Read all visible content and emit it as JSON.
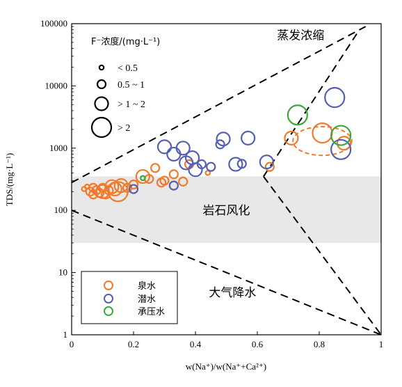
{
  "chart_data": {
    "type": "scatter",
    "title": "",
    "xlabel": "w(Na⁺)/w(Na⁺+Ca²⁺)",
    "ylabel": "TDS/(mg·L⁻¹)",
    "xlim": [
      0,
      1
    ],
    "ylim": [
      1,
      100000
    ],
    "yscale": "log",
    "x_ticks": [
      "0",
      "0.2",
      "0.4",
      "0.6",
      "0.8",
      "1"
    ],
    "y_ticks": [
      "1",
      "10",
      "100",
      "1000",
      "10000",
      "100000"
    ],
    "x_tick_values": [
      0,
      0.2,
      0.4,
      0.6,
      0.8,
      1
    ],
    "y_tick_values": [
      1,
      10,
      100,
      1000,
      10000,
      100000
    ],
    "grid": false,
    "colors": {
      "spring": "#f07a2a",
      "phreatic": "#5560b0",
      "confined": "#3aa83a",
      "band": "#e8e8e8",
      "ellipse": "#f07a2a"
    },
    "regions": [
      {
        "label": "蒸发浓缩",
        "x": 0.74,
        "y": 65000
      },
      {
        "label": "岩石风化",
        "x": 0.5,
        "y": 100
      },
      {
        "label": "大气降水",
        "x": 0.52,
        "y": 4.8
      }
    ],
    "rock_band": {
      "y_range": [
        30,
        350
      ]
    },
    "boundary_lines": [
      {
        "name": "upper-left",
        "points": [
          [
            0,
            280
          ],
          [
            0.95,
            90000
          ]
        ]
      },
      {
        "name": "lower-left",
        "points": [
          [
            0,
            100
          ],
          [
            1,
            1
          ]
        ]
      },
      {
        "name": "right-upper",
        "points": [
          [
            0.62,
            350
          ],
          [
            0.93,
            80000
          ]
        ]
      },
      {
        "name": "right-lower",
        "points": [
          [
            0.62,
            350
          ],
          [
            1,
            1
          ]
        ]
      }
    ],
    "highlight_ellipse": {
      "cx": 0.81,
      "cy": 1300,
      "x_radius": 0.095,
      "y_factor": 1.7
    },
    "size_legend": {
      "title": "F⁻浓度/(mg·L⁻¹)",
      "items": [
        {
          "label": "< 0.5",
          "size": 1
        },
        {
          "label": "0.5 ~ 1",
          "size": 2
        },
        {
          "label": "> 1 ~ 2",
          "size": 3
        },
        {
          "label": "> 2",
          "size": 4
        }
      ]
    },
    "series": [
      {
        "name": "泉水",
        "color": "#f07a2a",
        "points": [
          {
            "x": 0.04,
            "y": 220,
            "s": 1
          },
          {
            "x": 0.05,
            "y": 240,
            "s": 1
          },
          {
            "x": 0.06,
            "y": 200,
            "s": 2
          },
          {
            "x": 0.07,
            "y": 230,
            "s": 2
          },
          {
            "x": 0.07,
            "y": 180,
            "s": 2
          },
          {
            "x": 0.08,
            "y": 210,
            "s": 2
          },
          {
            "x": 0.09,
            "y": 190,
            "s": 2
          },
          {
            "x": 0.1,
            "y": 230,
            "s": 2
          },
          {
            "x": 0.1,
            "y": 200,
            "s": 3
          },
          {
            "x": 0.11,
            "y": 180,
            "s": 2
          },
          {
            "x": 0.12,
            "y": 210,
            "s": 2
          },
          {
            "x": 0.13,
            "y": 240,
            "s": 3
          },
          {
            "x": 0.14,
            "y": 220,
            "s": 3
          },
          {
            "x": 0.15,
            "y": 200,
            "s": 4
          },
          {
            "x": 0.16,
            "y": 250,
            "s": 3
          },
          {
            "x": 0.18,
            "y": 230,
            "s": 2
          },
          {
            "x": 0.2,
            "y": 260,
            "s": 2
          },
          {
            "x": 0.23,
            "y": 350,
            "s": 3
          },
          {
            "x": 0.25,
            "y": 320,
            "s": 2
          },
          {
            "x": 0.27,
            "y": 480,
            "s": 2
          },
          {
            "x": 0.29,
            "y": 280,
            "s": 2
          },
          {
            "x": 0.3,
            "y": 300,
            "s": 2
          },
          {
            "x": 0.33,
            "y": 380,
            "s": 2
          },
          {
            "x": 0.36,
            "y": 290,
            "s": 2
          },
          {
            "x": 0.38,
            "y": 550,
            "s": 2
          },
          {
            "x": 0.44,
            "y": 400,
            "s": 1
          },
          {
            "x": 0.64,
            "y": 500,
            "s": 2
          },
          {
            "x": 0.71,
            "y": 1450,
            "s": 3
          },
          {
            "x": 0.81,
            "y": 1750,
            "s": 4
          },
          {
            "x": 0.88,
            "y": 1200,
            "s": 3
          }
        ]
      },
      {
        "name": "潜水",
        "color": "#5560b0",
        "points": [
          {
            "x": 0.2,
            "y": 220,
            "s": 2
          },
          {
            "x": 0.33,
            "y": 250,
            "s": 2
          },
          {
            "x": 0.3,
            "y": 1050,
            "s": 3
          },
          {
            "x": 0.33,
            "y": 800,
            "s": 3
          },
          {
            "x": 0.36,
            "y": 1000,
            "s": 3
          },
          {
            "x": 0.37,
            "y": 580,
            "s": 3
          },
          {
            "x": 0.39,
            "y": 700,
            "s": 3
          },
          {
            "x": 0.4,
            "y": 450,
            "s": 3
          },
          {
            "x": 0.42,
            "y": 550,
            "s": 2
          },
          {
            "x": 0.45,
            "y": 500,
            "s": 2
          },
          {
            "x": 0.48,
            "y": 1150,
            "s": 2
          },
          {
            "x": 0.49,
            "y": 1400,
            "s": 3
          },
          {
            "x": 0.53,
            "y": 550,
            "s": 3
          },
          {
            "x": 0.55,
            "y": 560,
            "s": 2
          },
          {
            "x": 0.57,
            "y": 1450,
            "s": 3
          },
          {
            "x": 0.63,
            "y": 600,
            "s": 3
          },
          {
            "x": 0.85,
            "y": 6500,
            "s": 4
          },
          {
            "x": 0.87,
            "y": 950,
            "s": 4
          }
        ]
      },
      {
        "name": "承压水",
        "color": "#3aa83a",
        "points": [
          {
            "x": 0.23,
            "y": 330,
            "s": 1
          },
          {
            "x": 0.73,
            "y": 3400,
            "s": 4
          },
          {
            "x": 0.87,
            "y": 1600,
            "s": 4
          }
        ]
      }
    ]
  }
}
